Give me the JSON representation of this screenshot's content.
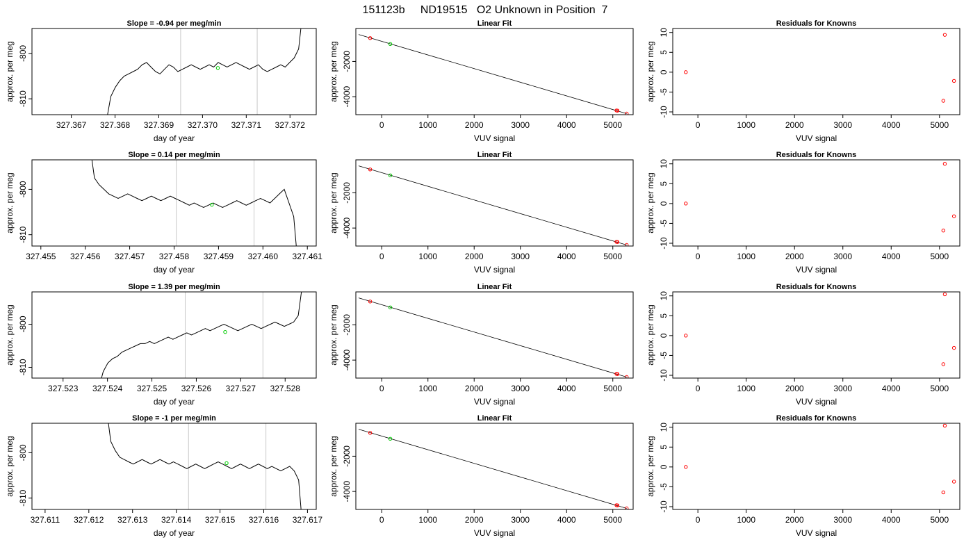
{
  "page_title": "151123b     ND19515   O2 Unknown in Position  7",
  "chart_data": [
    {
      "type": "line",
      "title": "Slope =  -0.94  per meg/min",
      "xlabel": "day of year",
      "ylabel": "approx. per meg",
      "xlim": [
        327.3661,
        327.3726
      ],
      "ylim": [
        -813.5,
        -794.5
      ],
      "x_ticks": [
        "327.367",
        "327.368",
        "327.369",
        "327.370",
        "327.371",
        "327.372"
      ],
      "y_ticks": [
        "-800",
        "-810"
      ],
      "series": [
        {
          "x_start": 327.3678,
          "x_end": 327.3723,
          "values": [
            -815,
            -809.5,
            -807.5,
            -806,
            -805,
            -804.5,
            -804,
            -803.5,
            -802.5,
            -802,
            -803,
            -804,
            -804.5,
            -803.5,
            -802.5,
            -803,
            -804,
            -803.5,
            -803,
            -802.5,
            -803,
            -803.5,
            -803,
            -802.5,
            -803,
            -802,
            -802.5,
            -803,
            -802.5,
            -802,
            -802.5,
            -803,
            -803.5,
            -803,
            -802.5,
            -803.5,
            -804,
            -803.5,
            -803,
            -802.5,
            -803,
            -802,
            -801,
            -799,
            -790
          ]
        }
      ],
      "vlines": [
        327.3695,
        327.37125
      ],
      "green_point": {
        "x": 327.37035,
        "y": -803.2
      }
    },
    {
      "type": "line",
      "title": "Slope =  0.14  per meg/min",
      "xlabel": "day of year",
      "ylabel": "approx. per meg",
      "xlim": [
        327.4548,
        327.4612
      ],
      "ylim": [
        -812.5,
        -793.5
      ],
      "x_ticks": [
        "327.455",
        "327.456",
        "327.457",
        "327.458",
        "327.459",
        "327.460",
        "327.461"
      ],
      "y_ticks": [
        "-800",
        "-810"
      ],
      "series": [
        {
          "x_start": 327.4561,
          "x_end": 327.4608,
          "values": [
            -790,
            -797.5,
            -799,
            -800,
            -801,
            -801.5,
            -802,
            -801.5,
            -801,
            -801.5,
            -802,
            -802.5,
            -802,
            -801.5,
            -802,
            -802.5,
            -802,
            -801.5,
            -802,
            -802.5,
            -803,
            -803.5,
            -803,
            -803.5,
            -804,
            -803.5,
            -803,
            -803.5,
            -804,
            -803.5,
            -803,
            -802.5,
            -803,
            -803.5,
            -803,
            -802.5,
            -802,
            -802.5,
            -803,
            -802,
            -801,
            -800,
            -803,
            -806,
            -818
          ]
        }
      ],
      "vlines": [
        327.45805,
        327.4598
      ],
      "green_point": {
        "x": 327.45885,
        "y": -803.4
      }
    },
    {
      "type": "line",
      "title": "Slope =  1.39  per meg/min",
      "xlabel": "day of year",
      "ylabel": "approx. per meg",
      "xlim": [
        327.5223,
        327.5287
      ],
      "ylim": [
        -812.5,
        -792.5
      ],
      "x_ticks": [
        "327.523",
        "327.524",
        "327.525",
        "327.526",
        "327.527",
        "327.528"
      ],
      "y_ticks": [
        "-800",
        "-810"
      ],
      "series": [
        {
          "x_start": 327.5238,
          "x_end": 327.5284,
          "values": [
            -815,
            -811,
            -809,
            -808,
            -807.5,
            -806.5,
            -806,
            -805.5,
            -805,
            -804.5,
            -804.5,
            -804,
            -804.5,
            -804,
            -803.5,
            -803,
            -803.5,
            -803,
            -802.5,
            -802,
            -802.5,
            -802,
            -801.5,
            -801,
            -801.5,
            -801,
            -800.5,
            -800,
            -800.5,
            -801,
            -801.5,
            -801,
            -800.5,
            -800,
            -800.5,
            -801,
            -800.5,
            -800,
            -799.5,
            -800,
            -800.5,
            -800,
            -799.5,
            -798,
            -790
          ]
        }
      ],
      "vlines": [
        327.52575,
        327.5275
      ],
      "green_point": {
        "x": 327.52665,
        "y": -801.8
      }
    },
    {
      "type": "line",
      "title": "Slope =  -1  per meg/min",
      "xlabel": "day of year",
      "ylabel": "approx. per meg",
      "xlim": [
        327.6107,
        327.6172
      ],
      "ylim": [
        -812.5,
        -793.5
      ],
      "x_ticks": [
        "327.611",
        "327.612",
        "327.613",
        "327.614",
        "327.615",
        "327.616",
        "327.617"
      ],
      "y_ticks": [
        "-800",
        "-810"
      ],
      "series": [
        {
          "x_start": 327.6124,
          "x_end": 327.6169,
          "values": [
            -790,
            -797.5,
            -799.5,
            -801,
            -801.5,
            -802,
            -802.5,
            -802,
            -801.5,
            -802,
            -802.5,
            -802,
            -801.5,
            -802,
            -802.5,
            -802,
            -802.5,
            -803,
            -803.5,
            -803,
            -802.5,
            -803,
            -803.5,
            -803,
            -802.5,
            -802,
            -802.5,
            -803,
            -803.5,
            -803,
            -802.5,
            -803,
            -803.5,
            -803,
            -802.5,
            -803,
            -803.5,
            -803,
            -803.5,
            -804,
            -803.5,
            -803,
            -804,
            -806,
            -818
          ]
        }
      ],
      "vlines": [
        327.61428,
        327.61605
      ],
      "green_point": {
        "x": 327.61515,
        "y": -802.3
      }
    },
    {
      "type": "scatter",
      "title": "Linear Fit",
      "xlabel": "VUV signal",
      "ylabel": "approx. per meg",
      "xlim": [
        -560,
        5440
      ],
      "ylim": [
        -5020,
        -130
      ],
      "x_ticks": [
        "0",
        "1000",
        "2000",
        "3000",
        "4000",
        "5000"
      ],
      "y_ticks": [
        "-2000",
        "-4000"
      ],
      "fit_line": {
        "x": [
          -500,
          5300
        ],
        "y": [
          -470,
          -4960
        ]
      },
      "knowns": [
        {
          "x": -250,
          "y": -674
        },
        {
          "x": 5080,
          "y": -4780
        },
        {
          "x": 5100,
          "y": -4790
        },
        {
          "x": 5300,
          "y": -4960
        }
      ],
      "unknown": {
        "x": 185,
        "y": -1010
      }
    },
    {
      "type": "scatter",
      "title": "Linear Fit",
      "xlabel": "VUV signal",
      "ylabel": "approx. per meg",
      "xlim": [
        -560,
        5440
      ],
      "ylim": [
        -5020,
        -130
      ],
      "x_ticks": [
        "0",
        "1000",
        "2000",
        "3000",
        "4000",
        "5000"
      ],
      "y_ticks": [
        "-2000",
        "-4000"
      ],
      "fit_line": {
        "x": [
          -500,
          5300
        ],
        "y": [
          -470,
          -4960
        ]
      },
      "knowns": [
        {
          "x": -250,
          "y": -674
        },
        {
          "x": 5080,
          "y": -4780
        },
        {
          "x": 5100,
          "y": -4790
        },
        {
          "x": 5300,
          "y": -4960
        }
      ],
      "unknown": {
        "x": 185,
        "y": -1010
      }
    },
    {
      "type": "scatter",
      "title": "Linear Fit",
      "xlabel": "VUV signal",
      "ylabel": "approx. per meg",
      "xlim": [
        -560,
        5440
      ],
      "ylim": [
        -5020,
        -130
      ],
      "x_ticks": [
        "0",
        "1000",
        "2000",
        "3000",
        "4000",
        "5000"
      ],
      "y_ticks": [
        "-2000",
        "-4000"
      ],
      "fit_line": {
        "x": [
          -500,
          5300
        ],
        "y": [
          -470,
          -4960
        ]
      },
      "knowns": [
        {
          "x": -250,
          "y": -674
        },
        {
          "x": 5080,
          "y": -4780
        },
        {
          "x": 5100,
          "y": -4790
        },
        {
          "x": 5300,
          "y": -4960
        }
      ],
      "unknown": {
        "x": 185,
        "y": -1010
      }
    },
    {
      "type": "scatter",
      "title": "Linear Fit",
      "xlabel": "VUV signal",
      "ylabel": "approx. per meg",
      "xlim": [
        -560,
        5440
      ],
      "ylim": [
        -5020,
        -130
      ],
      "x_ticks": [
        "0",
        "1000",
        "2000",
        "3000",
        "4000",
        "5000"
      ],
      "y_ticks": [
        "-2000",
        "-4000"
      ],
      "fit_line": {
        "x": [
          -500,
          5300
        ],
        "y": [
          -470,
          -4960
        ]
      },
      "knowns": [
        {
          "x": -250,
          "y": -674
        },
        {
          "x": 5080,
          "y": -4780
        },
        {
          "x": 5100,
          "y": -4790
        },
        {
          "x": 5300,
          "y": -4960
        }
      ],
      "unknown": {
        "x": 185,
        "y": -1010
      }
    },
    {
      "type": "scatter",
      "title": "Residuals for Knowns",
      "xlabel": "VUV signal",
      "ylabel": "approx. per meg",
      "xlim": [
        -520,
        5420
      ],
      "ylim": [
        -10.7,
        11.0
      ],
      "x_ticks": [
        "0",
        "1000",
        "2000",
        "3000",
        "4000",
        "5000"
      ],
      "y_ticks": [
        "10",
        "5",
        "0",
        "-5",
        "-10"
      ],
      "points": [
        {
          "x": -250,
          "y": 0
        },
        {
          "x": 5080,
          "y": -7.2
        },
        {
          "x": 5110,
          "y": 9.4
        },
        {
          "x": 5300,
          "y": -2.2
        }
      ]
    },
    {
      "type": "scatter",
      "title": "Residuals for Knowns",
      "xlabel": "VUV signal",
      "ylabel": "approx. per meg",
      "xlim": [
        -520,
        5420
      ],
      "ylim": [
        -10.7,
        11.0
      ],
      "x_ticks": [
        "0",
        "1000",
        "2000",
        "3000",
        "4000",
        "5000"
      ],
      "y_ticks": [
        "10",
        "5",
        "0",
        "-5",
        "-10"
      ],
      "points": [
        {
          "x": -250,
          "y": 0
        },
        {
          "x": 5080,
          "y": -6.8
        },
        {
          "x": 5110,
          "y": 10.0
        },
        {
          "x": 5300,
          "y": -3.2
        }
      ]
    },
    {
      "type": "scatter",
      "title": "Residuals for Knowns",
      "xlabel": "VUV signal",
      "ylabel": "approx. per meg",
      "xlim": [
        -520,
        5420
      ],
      "ylim": [
        -10.7,
        11.0
      ],
      "x_ticks": [
        "0",
        "1000",
        "2000",
        "3000",
        "4000",
        "5000"
      ],
      "y_ticks": [
        "10",
        "5",
        "0",
        "-5",
        "-10"
      ],
      "points": [
        {
          "x": -250,
          "y": 0
        },
        {
          "x": 5080,
          "y": -7.2
        },
        {
          "x": 5110,
          "y": 10.4
        },
        {
          "x": 5300,
          "y": -3.1
        }
      ]
    },
    {
      "type": "scatter",
      "title": "Residuals for Knowns",
      "xlabel": "VUV signal",
      "ylabel": "approx. per meg",
      "xlim": [
        -520,
        5420
      ],
      "ylim": [
        -10.7,
        11.0
      ],
      "x_ticks": [
        "0",
        "1000",
        "2000",
        "3000",
        "4000",
        "5000"
      ],
      "y_ticks": [
        "10",
        "5",
        "0",
        "-5",
        "-10"
      ],
      "points": [
        {
          "x": -250,
          "y": 0
        },
        {
          "x": 5080,
          "y": -6.4
        },
        {
          "x": 5110,
          "y": 10.4
        },
        {
          "x": 5300,
          "y": -3.7
        }
      ]
    }
  ],
  "colors": {
    "line": "#000000",
    "vline": "#c8c8c8",
    "unknown_point": "#00cc00",
    "known_point": "#ff0000",
    "frame": "#000000"
  }
}
